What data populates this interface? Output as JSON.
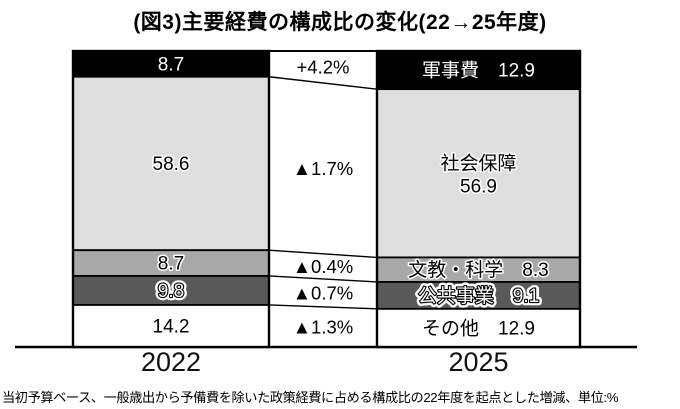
{
  "title": "(図3)主要経費の構成比の変化(22→25年度)",
  "footnote": "当初予算ベース、一般歳出から予備費を除いた政策経費に占める構成比の22年度を起点とした増減、単位:%",
  "chart_data": {
    "type": "bar",
    "subtype": "stacked-percentage-comparison",
    "title": "(図3)主要経費の構成比の変化(22→25年度)",
    "unit": "%",
    "ylim": [
      0,
      100
    ],
    "grid": false,
    "legend_position": "none",
    "years": [
      "2022",
      "2025"
    ],
    "categories": [
      "軍事費",
      "社会保障",
      "文教・科学",
      "公共事業",
      "その他"
    ],
    "series": [
      {
        "name": "2022",
        "values": [
          8.7,
          58.6,
          8.7,
          9.8,
          14.2
        ]
      },
      {
        "name": "2025",
        "values": [
          12.9,
          56.9,
          8.3,
          9.1,
          12.9
        ]
      }
    ],
    "changes": [
      "+4.2%",
      "▲1.7%",
      "▲0.4%",
      "▲0.7%",
      "▲1.3%"
    ],
    "segment_colors": [
      "#000000",
      "#dedede",
      "#a8a8a8",
      "#595959",
      "#ffffff"
    ],
    "segment_text_colors": [
      "#ffffff",
      "#000000",
      "#000000",
      "#ffffff",
      "#000000"
    ]
  }
}
